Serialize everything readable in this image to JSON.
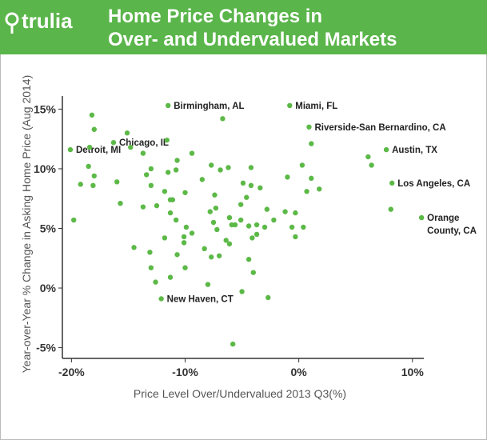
{
  "logo": "trulia",
  "chart_data": {
    "type": "scatter",
    "title_lines": [
      "Home Price Changes in",
      "Over- and Undervalued Markets"
    ],
    "x_label": "Price Level Over/Undervalued 2013 Q3(%)",
    "y_label": "Year-over-Year % Change in Asking Home Price  (Aug 2014)",
    "color": "#5cb947",
    "xlim": [
      -20.8,
      11.0
    ],
    "ylim": [
      -5.9,
      16.1
    ],
    "xticks": [
      {
        "value": -20,
        "label": "-20%"
      },
      {
        "value": -10,
        "label": "-10%"
      },
      {
        "value": 0,
        "label": "0%"
      },
      {
        "value": 10,
        "label": "10%"
      }
    ],
    "yticks": [
      {
        "value": 15,
        "label": "15%"
      },
      {
        "value": 10,
        "label": "10%"
      },
      {
        "value": 5,
        "label": "5%"
      },
      {
        "value": 0,
        "label": "0%"
      },
      {
        "value": -5,
        "label": "-5%"
      }
    ],
    "x": [
      -20.1,
      -19.8,
      -19.2,
      -18.5,
      -18.4,
      -18.2,
      -18.0,
      -18.0,
      -18.1,
      -16.0,
      -15.7,
      -16.3,
      -15.1,
      -14.8,
      -14.5,
      -13.7,
      -13.7,
      -13.4,
      -13.0,
      -13.0,
      -13.1,
      -13.0,
      -12.6,
      -12.5,
      -12.1,
      -11.8,
      -11.5,
      -11.6,
      -11.5,
      -11.3,
      -11.3,
      -11.3,
      -11.8,
      -11.1,
      -10.8,
      -10.8,
      -10.7,
      -10.7,
      -10.1,
      -10.1,
      -10.0,
      -10.0,
      -9.9,
      -9.4,
      -9.4,
      -8.5,
      -8.3,
      -8.0,
      -7.8,
      -7.7,
      -7.7,
      -7.5,
      -7.4,
      -7.3,
      -7.2,
      -7.0,
      -6.9,
      -6.7,
      -6.4,
      -6.2,
      -6.1,
      -6.1,
      -5.9,
      -5.8,
      -5.6,
      -5.1,
      -5.1,
      -5.0,
      -4.9,
      -4.6,
      -4.4,
      -4.4,
      -4.2,
      -4.2,
      -4.1,
      -4.0,
      -3.7,
      -3.7,
      -3.4,
      -3.0,
      -2.8,
      -2.7,
      -2.2,
      -1.2,
      -1.0,
      -0.8,
      -0.6,
      -0.3,
      -0.3,
      0.3,
      0.4,
      0.7,
      0.9,
      1.1,
      1.1,
      1.8,
      6.1,
      6.4,
      7.7,
      8.2,
      8.1,
      10.8
    ],
    "y": [
      11.6,
      5.7,
      8.7,
      10.2,
      11.8,
      14.5,
      13.3,
      9.4,
      8.6,
      8.9,
      7.1,
      12.2,
      13.0,
      11.8,
      3.4,
      11.3,
      6.8,
      9.5,
      10.0,
      8.6,
      3.0,
      1.7,
      0.5,
      6.9,
      -0.9,
      8.1,
      9.7,
      12.4,
      15.3,
      7.4,
      6.3,
      0.9,
      4.2,
      7.4,
      5.7,
      9.9,
      10.7,
      2.8,
      4.3,
      3.8,
      1.7,
      8.0,
      5.1,
      11.3,
      4.6,
      9.1,
      3.3,
      0.3,
      6.4,
      2.6,
      10.3,
      5.5,
      7.8,
      6.7,
      4.9,
      2.7,
      9.9,
      14.2,
      4.0,
      10.1,
      5.9,
      3.7,
      5.3,
      -4.7,
      5.3,
      7.0,
      5.7,
      -0.3,
      8.8,
      7.6,
      2.4,
      5.2,
      10.1,
      8.6,
      4.2,
      1.3,
      5.3,
      4.5,
      8.4,
      5.1,
      6.6,
      -0.8,
      5.7,
      6.4,
      9.3,
      15.3,
      5.1,
      6.3,
      4.3,
      10.3,
      5.1,
      8.1,
      13.5,
      12.1,
      9.2,
      8.3,
      11.0,
      10.3,
      11.6,
      8.8,
      6.6,
      5.9
    ],
    "point_labels": [
      "Detroit, MI",
      null,
      null,
      null,
      null,
      null,
      null,
      null,
      null,
      null,
      null,
      "Chicago, IL",
      null,
      null,
      null,
      null,
      null,
      null,
      null,
      null,
      null,
      null,
      null,
      null,
      "New Haven, CT",
      null,
      null,
      null,
      "Birmingham, AL",
      null,
      null,
      null,
      null,
      null,
      null,
      null,
      null,
      null,
      null,
      null,
      null,
      null,
      null,
      null,
      null,
      null,
      null,
      null,
      null,
      null,
      null,
      null,
      null,
      null,
      null,
      null,
      null,
      null,
      null,
      null,
      null,
      null,
      null,
      null,
      null,
      null,
      null,
      null,
      null,
      null,
      null,
      null,
      null,
      null,
      null,
      null,
      null,
      null,
      null,
      null,
      null,
      null,
      null,
      null,
      null,
      "Miami, FL",
      null,
      null,
      null,
      null,
      null,
      null,
      "Riverside-San Bernardino, CA",
      null,
      null,
      null,
      null,
      null,
      "Austin, TX",
      "Los Angeles, CA",
      null,
      [
        "Orange",
        "County, CA"
      ]
    ]
  }
}
